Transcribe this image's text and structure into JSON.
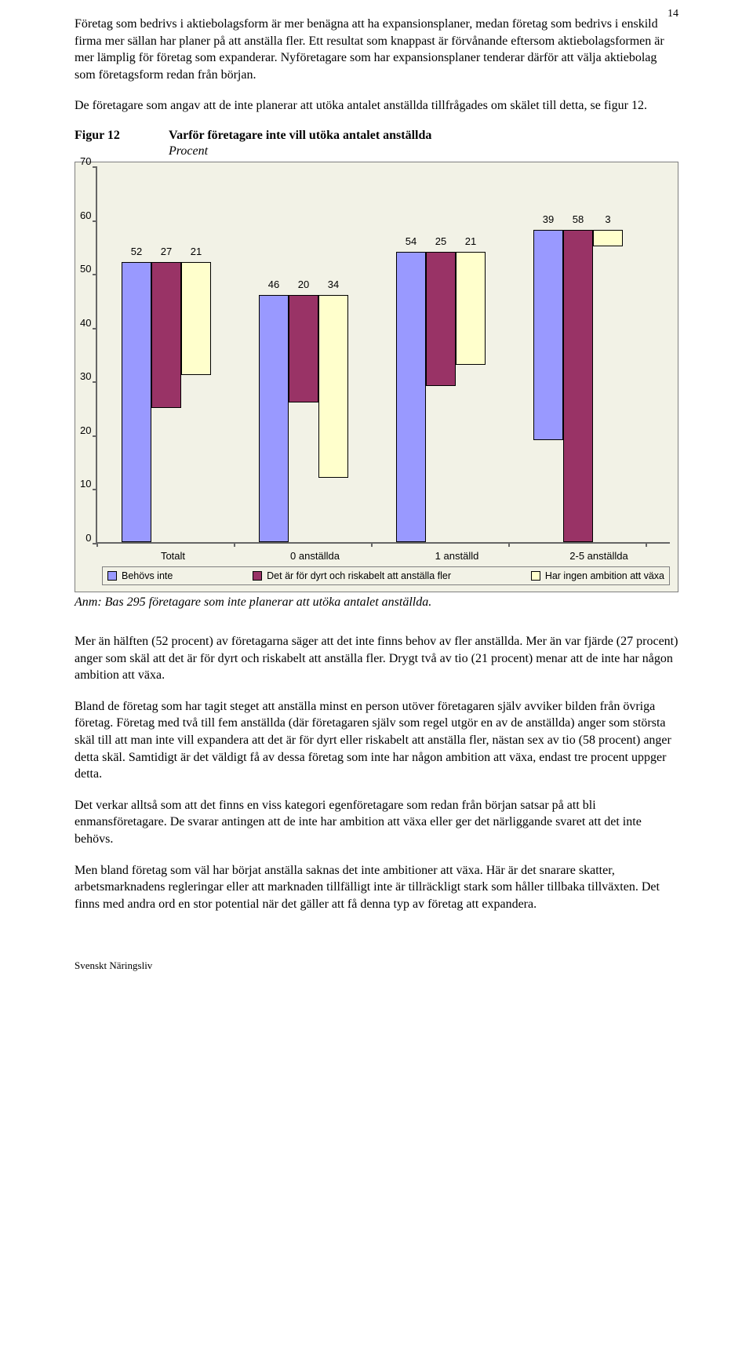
{
  "page_number": "14",
  "para1": "Företag som bedrivs i aktiebolagsform är mer benägna att ha expansionsplaner, medan företag som bedrivs i enskild firma mer sällan har planer på att anställa fler. Ett resultat som knappast är förvånande eftersom aktiebolagsformen är mer lämplig för företag som expanderar. Nyföretagare som har expansionsplaner tenderar därför att välja aktiebolag som företagsform redan från början.",
  "para2": "De företagare som angav att de inte planerar att utöka antalet anställda tillfrågades om skälet till detta, se figur 12.",
  "figure_label": "Figur 12",
  "figure_title": "Varför företagare inte vill utöka antalet anställda",
  "figure_sub": "Procent",
  "chart": {
    "ymax": 70,
    "yticks": [
      "70",
      "60",
      "50",
      "40",
      "30",
      "20",
      "10",
      "0"
    ],
    "categories": [
      "Totalt",
      "0 anställda",
      "1 anställd",
      "2-5 anställda"
    ],
    "series_colors": [
      "#9999ff",
      "#993366",
      "#ffffcc"
    ],
    "series_labels": [
      "Behövs inte",
      "Det är för dyrt och riskabelt att anställa fler",
      "Har ingen ambition att växa"
    ],
    "group_values": [
      [
        52,
        27,
        21
      ],
      [
        46,
        20,
        34
      ],
      [
        54,
        25,
        21
      ],
      [
        39,
        58,
        3
      ]
    ],
    "bg": "#f2f2e6",
    "border": "#7f7f7f",
    "bar_border": "#000000"
  },
  "anm_label": "Anm:",
  "anm_text": " Bas 295 företagare som inte planerar att utöka antalet anställda.",
  "para3": "Mer än hälften (52 procent) av företagarna säger att det inte finns behov av fler anställda. Mer än var fjärde (27 procent) anger som skäl att det är för dyrt och riskabelt att anställa fler. Drygt två av tio (21 procent) menar att de inte har någon ambition att växa.",
  "para4": "Bland de företag som har tagit steget att anställa minst en person utöver företagaren själv avviker bilden från övriga företag. Företag med två till fem anställda (där företagaren själv som regel utgör en av de anställda) anger som största skäl till att man inte vill expandera att det är för dyrt eller riskabelt att anställa fler, nästan sex av tio (58 procent) anger detta skäl. Samtidigt är det väldigt få av dessa företag som inte har någon ambition att växa, endast tre procent uppger detta.",
  "para5": "Det verkar alltså som att det finns en viss kategori egenföretagare som redan från början satsar på att bli enmansföretagare. De svarar antingen att de inte har ambition att växa eller ger det närliggande svaret att det inte behövs.",
  "para6": "Men bland företag som väl har börjat anställa saknas det inte ambitioner att växa. Här är det snarare skatter, arbetsmarknadens regleringar eller att marknaden tillfälligt inte är tillräckligt stark som håller tillbaka tillväxten. Det finns med andra ord en stor potential när det gäller att få denna typ av företag att expandera.",
  "footer": "Svenskt Näringsliv"
}
